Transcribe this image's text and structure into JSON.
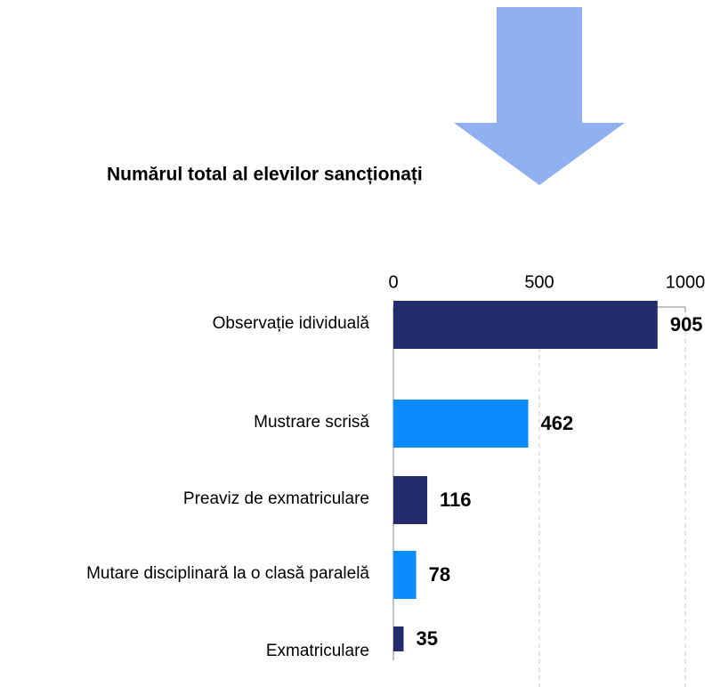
{
  "chart_data": {
    "type": "bar",
    "orientation": "horizontal",
    "title": "Numărul total al elevilor sancționați",
    "categories": [
      "Observație idividuală",
      "Mustrare scrisă",
      "Preaviz de exmatriculare",
      "Mutare disciplinară la o clasă paralelă",
      "Exmatriculare"
    ],
    "values": [
      905,
      462,
      116,
      78,
      35
    ],
    "colors": [
      "#232d6b",
      "#0a8cff",
      "#232d6b",
      "#0a8cff",
      "#232d6b"
    ],
    "xlim": [
      0,
      1000
    ],
    "xticks": [
      0,
      500,
      1000
    ],
    "grid": true
  }
}
